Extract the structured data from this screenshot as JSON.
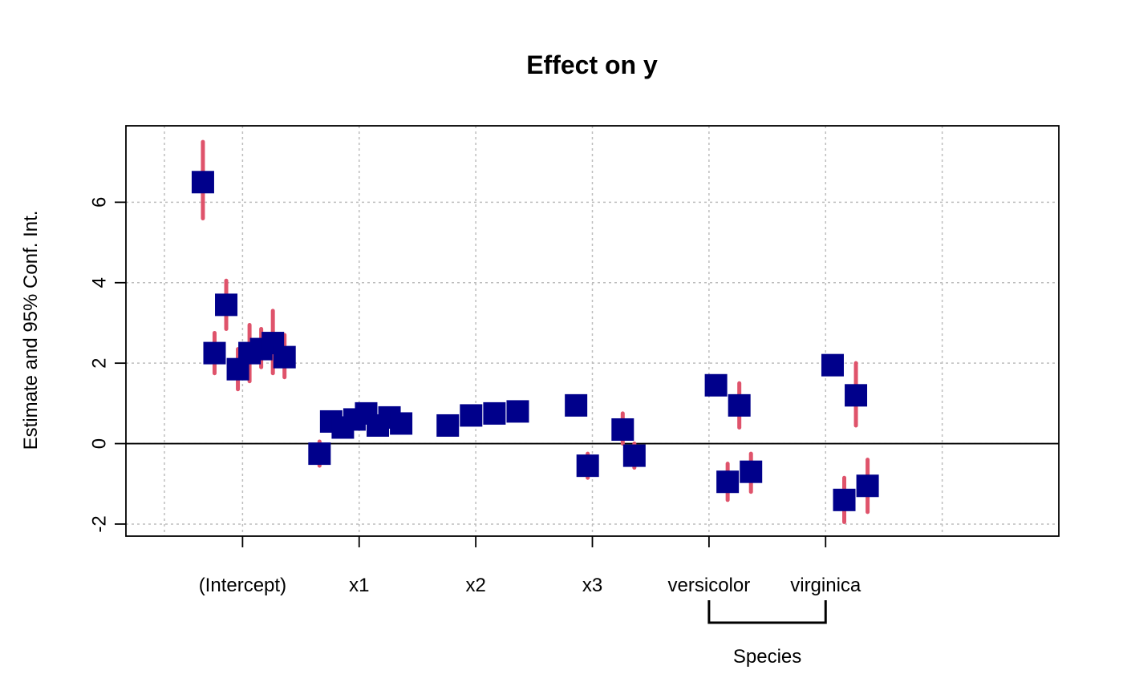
{
  "chart_data": {
    "type": "scatter",
    "title": "Effect on y",
    "ylabel": "Estimate and 95% Conf. Int.",
    "xlabel": "",
    "ylim": [
      -2.3,
      7.9
    ],
    "xlim": [
      0,
      8
    ],
    "grid": true,
    "reference_line_y": 0,
    "y_ticks": [
      "-2",
      "0",
      "2",
      "4",
      "6"
    ],
    "y_tick_values": [
      -2,
      0,
      2,
      4,
      6
    ],
    "x_ticks": [
      "(Intercept)",
      "x1",
      "x2",
      "x3",
      "versicolor",
      "virginica"
    ],
    "x_tick_values": [
      1,
      2,
      3,
      4,
      5,
      6
    ],
    "grid_x": [
      0.33,
      1,
      2,
      3,
      4,
      5,
      6,
      7
    ],
    "group_label": "Species",
    "group_span": [
      5,
      6
    ],
    "colors": {
      "point": "#00008B",
      "interval": "#DF536B"
    },
    "points": [
      {
        "x": 0.66,
        "est": 6.5,
        "lo": 5.6,
        "hi": 7.5
      },
      {
        "x": 0.76,
        "est": 2.25,
        "lo": 1.75,
        "hi": 2.75
      },
      {
        "x": 0.86,
        "est": 3.45,
        "lo": 2.85,
        "hi": 4.05
      },
      {
        "x": 0.96,
        "est": 1.85,
        "lo": 1.35,
        "hi": 2.35
      },
      {
        "x": 1.06,
        "est": 2.25,
        "lo": 1.55,
        "hi": 2.95
      },
      {
        "x": 1.16,
        "est": 2.35,
        "lo": 1.9,
        "hi": 2.85
      },
      {
        "x": 1.26,
        "est": 2.5,
        "lo": 1.75,
        "hi": 3.3
      },
      {
        "x": 1.36,
        "est": 2.15,
        "lo": 1.65,
        "hi": 2.7
      },
      {
        "x": 1.66,
        "est": -0.25,
        "lo": -0.55,
        "hi": 0.05
      },
      {
        "x": 1.76,
        "est": 0.55,
        "lo": 0.4,
        "hi": 0.75
      },
      {
        "x": 1.86,
        "est": 0.4,
        "lo": 0.25,
        "hi": 0.55
      },
      {
        "x": 1.96,
        "est": 0.6,
        "lo": 0.45,
        "hi": 0.75
      },
      {
        "x": 2.06,
        "est": 0.75,
        "lo": 0.6,
        "hi": 0.9
      },
      {
        "x": 2.16,
        "est": 0.45,
        "lo": 0.3,
        "hi": 0.6
      },
      {
        "x": 2.26,
        "est": 0.65,
        "lo": 0.5,
        "hi": 0.8
      },
      {
        "x": 2.36,
        "est": 0.5,
        "lo": 0.35,
        "hi": 0.65
      },
      {
        "x": 2.76,
        "est": 0.45,
        "lo": 0.35,
        "hi": 0.6
      },
      {
        "x": 2.96,
        "est": 0.7,
        "lo": 0.6,
        "hi": 0.85
      },
      {
        "x": 3.16,
        "est": 0.75,
        "lo": 0.65,
        "hi": 0.9
      },
      {
        "x": 3.36,
        "est": 0.8,
        "lo": 0.7,
        "hi": 0.95
      },
      {
        "x": 3.86,
        "est": 0.95,
        "lo": 0.85,
        "hi": 1.05
      },
      {
        "x": 3.96,
        "est": -0.55,
        "lo": -0.85,
        "hi": -0.25
      },
      {
        "x": 4.26,
        "est": 0.35,
        "lo": 0.0,
        "hi": 0.75
      },
      {
        "x": 4.36,
        "est": -0.3,
        "lo": -0.6,
        "hi": 0.0
      },
      {
        "x": 5.06,
        "est": 1.45,
        "lo": 1.35,
        "hi": 1.6
      },
      {
        "x": 5.16,
        "est": -0.95,
        "lo": -1.4,
        "hi": -0.5
      },
      {
        "x": 5.26,
        "est": 0.95,
        "lo": 0.4,
        "hi": 1.5
      },
      {
        "x": 5.36,
        "est": -0.7,
        "lo": -1.2,
        "hi": -0.25
      },
      {
        "x": 6.06,
        "est": 1.95,
        "lo": 1.85,
        "hi": 2.05
      },
      {
        "x": 6.16,
        "est": -1.4,
        "lo": -1.95,
        "hi": -0.85
      },
      {
        "x": 6.26,
        "est": 1.2,
        "lo": 0.45,
        "hi": 2.0
      },
      {
        "x": 6.36,
        "est": -1.05,
        "lo": -1.7,
        "hi": -0.4
      }
    ]
  }
}
